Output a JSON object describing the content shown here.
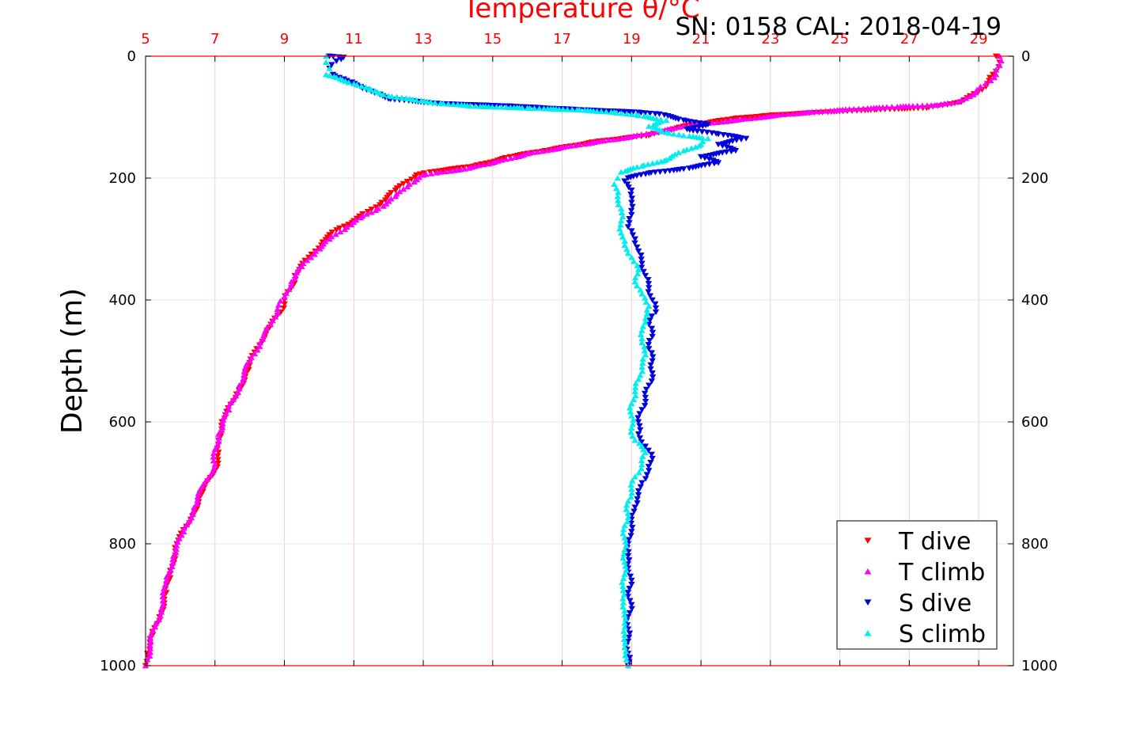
{
  "chart_data": {
    "type": "scatter",
    "title": "Temperature θ/°C",
    "annotation": "SN: 0158  CAL: 2018-04-19",
    "ylabel": "Depth (m)",
    "xlabel": "",
    "xlim": [
      5,
      30
    ],
    "ylim": [
      0,
      1000
    ],
    "y_reversed": true,
    "x_ticks": [
      "5",
      "7",
      "9",
      "11",
      "13",
      "15",
      "17",
      "19",
      "21",
      "23",
      "25",
      "27",
      "29"
    ],
    "y_ticks": [
      "0",
      "200",
      "400",
      "600",
      "800",
      "1000"
    ],
    "grid": true,
    "legend_position": "bottom-right",
    "colors": {
      "title": "#ff0000",
      "x_axis": "#ff0000",
      "grid": "#f4cccc"
    },
    "series": [
      {
        "name": "T dive",
        "marker": "triangle-down",
        "color": "#ff0000",
        "points": [
          [
            29.5,
            0
          ],
          [
            29.6,
            10
          ],
          [
            29.5,
            25
          ],
          [
            29.3,
            40
          ],
          [
            29.1,
            55
          ],
          [
            28.5,
            75
          ],
          [
            27.5,
            85
          ],
          [
            26.0,
            88
          ],
          [
            24.5,
            92
          ],
          [
            23.0,
            97
          ],
          [
            22.0,
            102
          ],
          [
            20.5,
            115
          ],
          [
            19.5,
            130
          ],
          [
            18.0,
            140
          ],
          [
            16.5,
            155
          ],
          [
            15.5,
            165
          ],
          [
            14.5,
            180
          ],
          [
            13.2,
            190
          ],
          [
            12.8,
            195
          ],
          [
            12.2,
            220
          ],
          [
            11.8,
            240
          ],
          [
            11.4,
            255
          ],
          [
            11.0,
            270
          ],
          [
            10.5,
            285
          ],
          [
            10.1,
            305
          ],
          [
            9.7,
            330
          ],
          [
            9.3,
            360
          ],
          [
            9.2,
            380
          ],
          [
            9.0,
            400
          ],
          [
            8.9,
            420
          ],
          [
            8.5,
            450
          ],
          [
            8.2,
            480
          ],
          [
            7.9,
            520
          ],
          [
            7.6,
            560
          ],
          [
            7.2,
            600
          ],
          [
            7.1,
            630
          ],
          [
            7.1,
            650
          ],
          [
            7.0,
            680
          ],
          [
            6.6,
            720
          ],
          [
            6.3,
            760
          ],
          [
            5.9,
            800
          ],
          [
            5.7,
            850
          ],
          [
            5.6,
            880
          ],
          [
            5.4,
            920
          ],
          [
            5.2,
            950
          ],
          [
            5.05,
            980
          ],
          [
            5.0,
            1000
          ]
        ]
      },
      {
        "name": "T climb",
        "marker": "triangle-up",
        "color": "#ff00ff",
        "points": [
          [
            29.6,
            0
          ],
          [
            29.6,
            15
          ],
          [
            29.5,
            30
          ],
          [
            29.2,
            45
          ],
          [
            28.9,
            60
          ],
          [
            28.4,
            75
          ],
          [
            27.8,
            80
          ],
          [
            26.5,
            83
          ],
          [
            25.0,
            88
          ],
          [
            23.5,
            95
          ],
          [
            22.0,
            105
          ],
          [
            20.5,
            115
          ],
          [
            19.0,
            132
          ],
          [
            17.5,
            145
          ],
          [
            16.0,
            160
          ],
          [
            15.0,
            175
          ],
          [
            14.2,
            185
          ],
          [
            13.5,
            190
          ],
          [
            13.0,
            195
          ],
          [
            12.6,
            210
          ],
          [
            12.2,
            230
          ],
          [
            11.7,
            250
          ],
          [
            11.2,
            265
          ],
          [
            10.8,
            280
          ],
          [
            10.3,
            300
          ],
          [
            9.9,
            320
          ],
          [
            9.5,
            345
          ],
          [
            9.2,
            370
          ],
          [
            9.0,
            395
          ],
          [
            8.8,
            415
          ],
          [
            8.6,
            440
          ],
          [
            8.3,
            470
          ],
          [
            8.0,
            500
          ],
          [
            7.7,
            540
          ],
          [
            7.4,
            580
          ],
          [
            7.1,
            620
          ],
          [
            7.0,
            645
          ],
          [
            7.0,
            670
          ],
          [
            6.7,
            700
          ],
          [
            6.4,
            740
          ],
          [
            6.1,
            780
          ],
          [
            5.8,
            820
          ],
          [
            5.6,
            860
          ],
          [
            5.5,
            900
          ],
          [
            5.3,
            930
          ],
          [
            5.15,
            960
          ],
          [
            5.05,
            990
          ],
          [
            5.0,
            1000
          ]
        ]
      },
      {
        "name": "S dive",
        "marker": "triangle-down",
        "color": "#0000dd",
        "points": [
          [
            10.3,
            0
          ],
          [
            10.7,
            2
          ],
          [
            10.5,
            8
          ],
          [
            10.3,
            20
          ],
          [
            10.4,
            30
          ],
          [
            10.8,
            40
          ],
          [
            11.2,
            50
          ],
          [
            11.6,
            60
          ],
          [
            12.0,
            70
          ],
          [
            13.5,
            78
          ],
          [
            15.5,
            82
          ],
          [
            17.5,
            88
          ],
          [
            19.2,
            92
          ],
          [
            19.8,
            95
          ],
          [
            20.5,
            105
          ],
          [
            21.2,
            112
          ],
          [
            20.6,
            120
          ],
          [
            21.5,
            128
          ],
          [
            22.3,
            135
          ],
          [
            21.5,
            145
          ],
          [
            22.0,
            155
          ],
          [
            21.0,
            165
          ],
          [
            21.5,
            175
          ],
          [
            20.5,
            185
          ],
          [
            19.5,
            192
          ],
          [
            18.9,
            200
          ],
          [
            18.8,
            205
          ],
          [
            19.0,
            220
          ],
          [
            19.0,
            240
          ],
          [
            19.0,
            260
          ],
          [
            18.9,
            280
          ],
          [
            19.1,
            300
          ],
          [
            19.2,
            320
          ],
          [
            19.3,
            340
          ],
          [
            19.4,
            360
          ],
          [
            19.5,
            380
          ],
          [
            19.6,
            400
          ],
          [
            19.7,
            420
          ],
          [
            19.5,
            440
          ],
          [
            19.6,
            460
          ],
          [
            19.5,
            480
          ],
          [
            19.6,
            500
          ],
          [
            19.6,
            520
          ],
          [
            19.5,
            540
          ],
          [
            19.4,
            560
          ],
          [
            19.3,
            580
          ],
          [
            19.2,
            600
          ],
          [
            19.2,
            620
          ],
          [
            19.4,
            640
          ],
          [
            19.6,
            660
          ],
          [
            19.5,
            680
          ],
          [
            19.3,
            700
          ],
          [
            19.2,
            720
          ],
          [
            19.1,
            740
          ],
          [
            19.0,
            760
          ],
          [
            19.0,
            780
          ],
          [
            18.9,
            800
          ],
          [
            18.9,
            820
          ],
          [
            18.9,
            840
          ],
          [
            19.0,
            860
          ],
          [
            18.9,
            880
          ],
          [
            19.0,
            900
          ],
          [
            18.9,
            920
          ],
          [
            18.9,
            940
          ],
          [
            18.9,
            960
          ],
          [
            18.9,
            980
          ],
          [
            18.9,
            1000
          ]
        ]
      },
      {
        "name": "S climb",
        "marker": "triangle-up",
        "color": "#00eeee",
        "points": [
          [
            10.2,
            0
          ],
          [
            10.2,
            10
          ],
          [
            10.3,
            20
          ],
          [
            10.2,
            30
          ],
          [
            10.5,
            35
          ],
          [
            11.0,
            45
          ],
          [
            11.5,
            55
          ],
          [
            12.0,
            65
          ],
          [
            12.8,
            72
          ],
          [
            13.5,
            77
          ],
          [
            14.5,
            82
          ],
          [
            16.0,
            85
          ],
          [
            17.5,
            88
          ],
          [
            18.5,
            92
          ],
          [
            19.2,
            97
          ],
          [
            20.0,
            105
          ],
          [
            19.5,
            115
          ],
          [
            20.0,
            125
          ],
          [
            20.5,
            130
          ],
          [
            21.2,
            135
          ],
          [
            21.0,
            145
          ],
          [
            20.5,
            155
          ],
          [
            20.0,
            170
          ],
          [
            19.3,
            180
          ],
          [
            18.7,
            190
          ],
          [
            18.6,
            200
          ],
          [
            18.5,
            210
          ],
          [
            18.6,
            230
          ],
          [
            18.7,
            250
          ],
          [
            18.7,
            270
          ],
          [
            18.7,
            290
          ],
          [
            18.8,
            310
          ],
          [
            19.0,
            330
          ],
          [
            19.2,
            350
          ],
          [
            19.1,
            370
          ],
          [
            19.3,
            390
          ],
          [
            19.5,
            410
          ],
          [
            19.4,
            430
          ],
          [
            19.3,
            450
          ],
          [
            19.3,
            470
          ],
          [
            19.4,
            490
          ],
          [
            19.3,
            510
          ],
          [
            19.2,
            530
          ],
          [
            19.1,
            550
          ],
          [
            19.0,
            570
          ],
          [
            19.0,
            590
          ],
          [
            19.0,
            610
          ],
          [
            19.1,
            630
          ],
          [
            19.4,
            650
          ],
          [
            19.3,
            670
          ],
          [
            19.1,
            690
          ],
          [
            19.0,
            710
          ],
          [
            18.9,
            730
          ],
          [
            18.9,
            750
          ],
          [
            18.8,
            770
          ],
          [
            18.8,
            790
          ],
          [
            18.8,
            810
          ],
          [
            18.8,
            830
          ],
          [
            18.8,
            850
          ],
          [
            18.75,
            870
          ],
          [
            18.75,
            890
          ],
          [
            18.8,
            910
          ],
          [
            18.8,
            930
          ],
          [
            18.8,
            950
          ],
          [
            18.8,
            970
          ],
          [
            18.85,
            990
          ],
          [
            18.9,
            1000
          ]
        ]
      }
    ]
  }
}
